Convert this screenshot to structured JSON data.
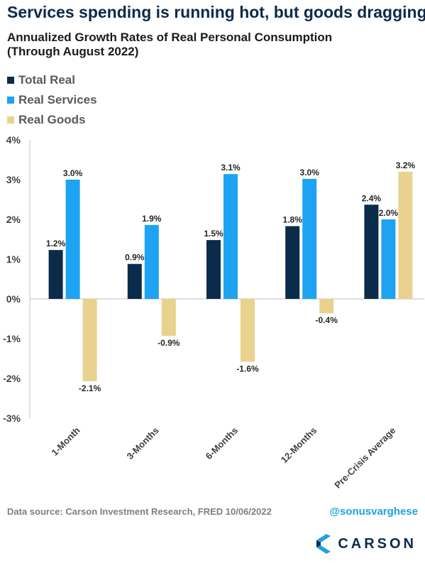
{
  "headline": "Services spending is running hot, but goods dragging",
  "chart_data": {
    "type": "bar",
    "title_line1": "Annualized Growth Rates of Real Personal Consumption",
    "title_line2": "(Through August 2022)",
    "categories": [
      "1-Month",
      "3-Months",
      "6-Months",
      "12-Months",
      "Pre-Crisis Average"
    ],
    "series": [
      {
        "name": "Total Real",
        "color": "#0b2b4a",
        "values": [
          1.23,
          0.88,
          1.48,
          1.83,
          2.37
        ],
        "labels": [
          "1.2%",
          "0.9%",
          "1.5%",
          "1.8%",
          "2.4%"
        ]
      },
      {
        "name": "Real Services",
        "color": "#1ea3f2",
        "values": [
          3.0,
          1.86,
          3.14,
          3.02,
          2.0
        ],
        "labels": [
          "3.0%",
          "1.9%",
          "3.1%",
          "3.0%",
          "2.0%"
        ]
      },
      {
        "name": "Real Goods",
        "color": "#e8d28e",
        "values": [
          -2.07,
          -0.93,
          -1.58,
          -0.36,
          3.2
        ],
        "labels": [
          "-2.1%",
          "-0.9%",
          "-1.6%",
          "-0.4%",
          "3.2%"
        ]
      }
    ],
    "ylim": [
      -3,
      4
    ],
    "yticks": [
      4,
      3,
      2,
      1,
      0,
      -1,
      -2,
      -3
    ],
    "ytick_labels": [
      "4%",
      "3%",
      "2%",
      "1%",
      "0%",
      "-1%",
      "-2%",
      "-3%"
    ],
    "legend_position": "top-left",
    "grid": false
  },
  "footer": {
    "source": "Data source: Carson Investment Research, FRED    10/06/2022",
    "handle": "@sonusvarghese",
    "logo_text": "CARSON",
    "logo_icon": "carson-chevron-logo"
  }
}
